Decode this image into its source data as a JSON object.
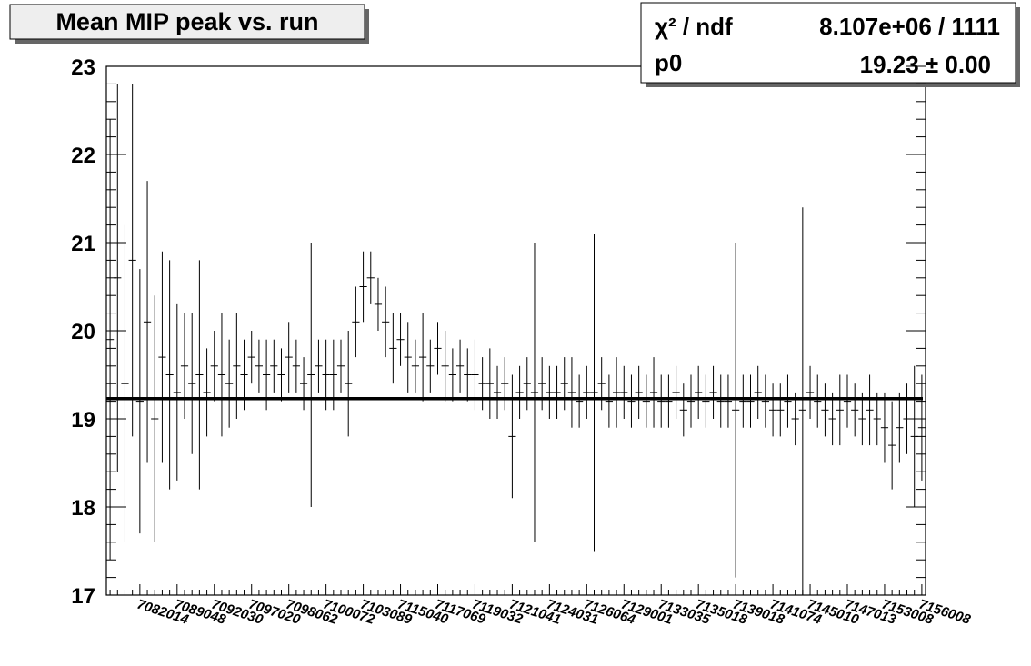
{
  "chart_data": {
    "type": "errorbar",
    "title": "Mean MIP peak vs. run",
    "stats": [
      [
        "χ² / ndf",
        "8.107e+06 / 1111"
      ],
      [
        "p0",
        "19.23 ± 0.00"
      ]
    ],
    "fit_value": 19.23,
    "ylim": [
      17,
      23
    ],
    "yticks": [
      17,
      18,
      19,
      20,
      21,
      22,
      23
    ],
    "categories": [
      null,
      null,
      null,
      null,
      "7082014",
      null,
      null,
      null,
      null,
      "7089048",
      null,
      null,
      null,
      null,
      "7092030",
      null,
      null,
      null,
      null,
      "7097020",
      null,
      null,
      null,
      null,
      "7098062",
      null,
      null,
      null,
      null,
      "7100072",
      null,
      null,
      null,
      null,
      "7103089",
      null,
      null,
      null,
      null,
      "7115040",
      null,
      null,
      null,
      null,
      "7117069",
      null,
      null,
      null,
      null,
      "7119032",
      null,
      null,
      null,
      null,
      "7121041",
      null,
      null,
      null,
      null,
      "7124031",
      null,
      null,
      null,
      null,
      "7126064",
      null,
      null,
      null,
      null,
      "7129001",
      null,
      null,
      null,
      null,
      "7133035",
      null,
      null,
      null,
      null,
      "7135018",
      null,
      null,
      null,
      null,
      "7139018",
      null,
      null,
      null,
      null,
      "7141074",
      null,
      null,
      null,
      null,
      "7145010",
      null,
      null,
      null,
      null,
      "7147013",
      null,
      null,
      null,
      null,
      "7153008",
      null,
      null,
      null,
      null,
      "7156008"
    ],
    "values": [
      19.9,
      20.6,
      19.4,
      20.8,
      19.2,
      20.1,
      19.0,
      19.7,
      19.5,
      19.3,
      19.6,
      19.4,
      19.5,
      19.3,
      19.6,
      19.5,
      19.4,
      19.6,
      19.5,
      19.7,
      19.6,
      19.5,
      19.6,
      19.5,
      19.7,
      19.6,
      19.4,
      19.5,
      19.6,
      19.5,
      19.5,
      19.6,
      19.4,
      20.1,
      20.5,
      20.6,
      20.3,
      20.1,
      19.8,
      19.9,
      19.7,
      19.6,
      19.7,
      19.6,
      19.8,
      19.6,
      19.5,
      19.6,
      19.5,
      19.5,
      19.4,
      19.4,
      19.3,
      19.4,
      18.8,
      19.3,
      19.4,
      19.3,
      19.4,
      19.3,
      19.3,
      19.4,
      19.3,
      19.2,
      19.3,
      19.3,
      19.4,
      19.2,
      19.3,
      19.3,
      19.2,
      19.3,
      19.2,
      19.3,
      19.2,
      19.2,
      19.3,
      19.1,
      19.2,
      19.3,
      19.2,
      19.3,
      19.2,
      19.2,
      19.1,
      19.2,
      19.2,
      19.3,
      19.2,
      19.1,
      19.1,
      19.2,
      19.0,
      19.1,
      19.3,
      19.2,
      19.1,
      19.0,
      19.1,
      19.2,
      19.1,
      19.0,
      19.1,
      19.0,
      18.9,
      18.7,
      18.9,
      19.0,
      18.8,
      18.9
    ],
    "errors": [
      2.5,
      2.2,
      1.8,
      2.0,
      1.5,
      1.6,
      1.4,
      1.2,
      1.3,
      1.0,
      0.6,
      0.8,
      1.3,
      0.5,
      0.4,
      0.7,
      0.5,
      0.6,
      0.4,
      0.3,
      0.3,
      0.4,
      0.3,
      0.3,
      0.4,
      0.3,
      0.3,
      1.5,
      0.3,
      0.4,
      0.4,
      0.3,
      0.6,
      0.4,
      0.4,
      0.3,
      0.3,
      0.4,
      0.4,
      0.3,
      0.4,
      0.3,
      0.5,
      0.3,
      0.3,
      0.4,
      0.3,
      0.3,
      0.3,
      0.4,
      0.3,
      0.4,
      0.3,
      0.3,
      0.7,
      0.3,
      0.3,
      1.7,
      0.3,
      0.3,
      0.3,
      0.3,
      0.4,
      0.3,
      0.3,
      1.8,
      0.3,
      0.3,
      0.4,
      0.3,
      0.3,
      0.3,
      0.3,
      0.4,
      0.3,
      0.3,
      0.3,
      0.3,
      0.3,
      0.3,
      0.3,
      0.3,
      0.3,
      0.3,
      1.9,
      0.3,
      0.3,
      0.3,
      0.3,
      0.3,
      0.3,
      0.3,
      0.3,
      2.3,
      0.3,
      0.3,
      0.3,
      0.3,
      0.4,
      0.3,
      0.3,
      0.3,
      0.4,
      0.3,
      0.4,
      0.5,
      0.4,
      0.4,
      0.8,
      0.6
    ],
    "color": "#000000"
  }
}
